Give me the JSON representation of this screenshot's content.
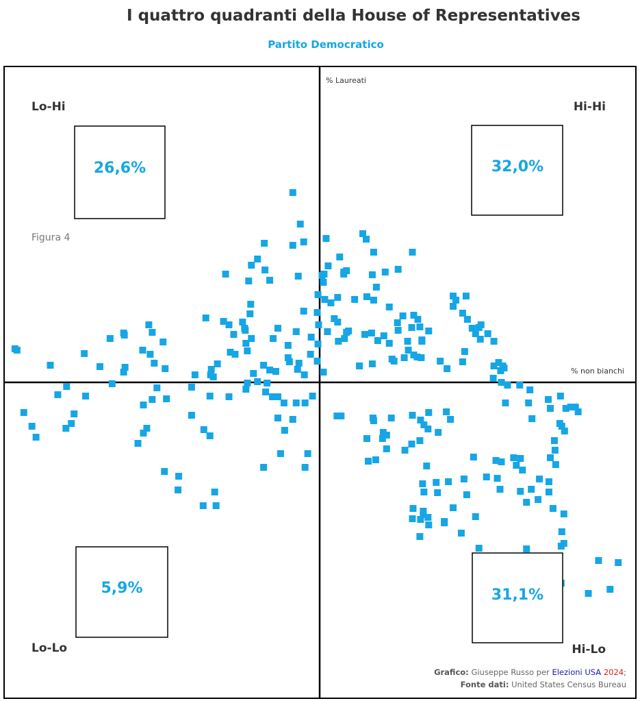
{
  "title": "I quattro quadranti della House of Representatives",
  "subtitle": "Partito Democratico",
  "figure_label": "Figura 4",
  "credits": {
    "line1_prefix": "Grafico:",
    "line1_author": "Giuseppe Russo per",
    "line1_site_a": "Elezioni USA",
    "line1_site_b": "2024",
    "line1_suffix": ";",
    "line2_prefix": "Fonte dati:",
    "line2_source": "United States Census Bureau"
  },
  "colors": {
    "points": "#16a6e6",
    "axes": "#000000",
    "percentages": "#16a6e6"
  },
  "chart_data": {
    "type": "scatter",
    "xlabel": "% non bianchi",
    "ylabel": "% Laureati",
    "xlim": [
      -463,
      467
    ],
    "ylim": [
      -461,
      461
    ],
    "quadrants": [
      {
        "name": "Lo-Hi",
        "position": "top-left",
        "percentage": "26,6%"
      },
      {
        "name": "Hi-Hi",
        "position": "top-right",
        "percentage": "32,0%"
      },
      {
        "name": "Lo-Lo",
        "position": "bottom-left",
        "percentage": "5,9%"
      },
      {
        "name": "Hi-Lo",
        "position": "bottom-right",
        "percentage": "31,1%"
      }
    ],
    "points": [
      [
        -38,
        277
      ],
      [
        -27,
        231
      ],
      [
        -22,
        205
      ],
      [
        11,
        210
      ],
      [
        31,
        183
      ],
      [
        65,
        217
      ],
      [
        70,
        209
      ],
      [
        81,
        190
      ],
      [
        98,
        161
      ],
      [
        71,
        125
      ],
      [
        117,
        165
      ],
      [
        138,
        190
      ],
      [
        -80,
        203
      ],
      [
        -90,
        180
      ],
      [
        -99,
        171
      ],
      [
        -79,
        164
      ],
      [
        -72,
        149
      ],
      [
        -137,
        158
      ],
      [
        -103,
        148
      ],
      [
        -30,
        155
      ],
      [
        -22,
        104
      ],
      [
        -1,
        128
      ],
      [
        -2,
        102
      ],
      [
        8,
        158
      ],
      [
        5,
        156
      ],
      [
        37,
        158
      ],
      [
        18,
        116
      ],
      [
        23,
        93
      ],
      [
        28,
        88
      ],
      [
        41,
        73
      ],
      [
        29,
        60
      ],
      [
        38,
        64
      ],
      [
        -38,
        200
      ],
      [
        -166,
        94
      ],
      [
        -140,
        89
      ],
      [
        -132,
        84
      ],
      [
        -100,
        114
      ],
      [
        -60,
        79
      ],
      [
        -67,
        64
      ],
      [
        -45,
        54
      ],
      [
        -45,
        36
      ],
      [
        -11,
        66
      ],
      [
        -12,
        41
      ],
      [
        -21,
        11
      ],
      [
        -31,
        19
      ],
      [
        -29,
        28
      ],
      [
        -43,
        30
      ],
      [
        -33,
        74
      ],
      [
        -72,
        18
      ],
      [
        -81,
        25
      ],
      [
        -63,
        16
      ],
      [
        -1,
        56
      ],
      [
        0,
        84
      ],
      [
        -2,
        31
      ],
      [
        -20,
        -30
      ],
      [
        7,
        15
      ],
      [
        -108,
        76
      ],
      [
        -99,
        64
      ],
      [
        -109,
        79
      ],
      [
        -112,
        88
      ],
      [
        -107,
        57
      ],
      [
        -105,
        46
      ],
      [
        -101,
        100
      ],
      [
        -125,
        70
      ],
      [
        -130,
        44
      ],
      [
        -123,
        41
      ],
      [
        -149,
        27
      ],
      [
        -158,
        19
      ],
      [
        -155,
        8
      ],
      [
        -132,
        -21
      ],
      [
        -105,
        -1
      ],
      [
        -96,
        13
      ],
      [
        -107,
        -10
      ],
      [
        -90,
        1
      ],
      [
        -76,
        -1
      ],
      [
        -78,
        -14
      ],
      [
        -68,
        -21
      ],
      [
        -60,
        -21
      ],
      [
        -51,
        -30
      ],
      [
        -229,
        59
      ],
      [
        -159,
        11
      ],
      [
        -160,
        -20
      ],
      [
        -187,
        -48
      ],
      [
        -169,
        -69
      ],
      [
        -160,
        -78
      ],
      [
        -153,
        -160
      ],
      [
        -245,
        73
      ],
      [
        -250,
        84
      ],
      [
        -286,
        69
      ],
      [
        -287,
        72
      ],
      [
        -307,
        64
      ],
      [
        -345,
        42
      ],
      [
        -226,
        20
      ],
      [
        -242,
        28
      ],
      [
        -248,
        41
      ],
      [
        -259,
        47
      ],
      [
        -285,
        22
      ],
      [
        -287,
        15
      ],
      [
        -238,
        -8
      ],
      [
        -258,
        -74
      ],
      [
        -253,
        -67
      ],
      [
        -266,
        -89
      ],
      [
        -227,
        -130
      ],
      [
        -206,
        -137
      ],
      [
        -207,
        -157
      ],
      [
        -360,
        -46
      ],
      [
        -384,
        -18
      ],
      [
        -371,
        -6
      ],
      [
        -395,
        25
      ],
      [
        -434,
        -44
      ],
      [
        -343,
        -20
      ],
      [
        -364,
        -60
      ],
      [
        -372,
        -67
      ],
      [
        -416,
        -80
      ],
      [
        -422,
        -64
      ],
      [
        -447,
        49
      ],
      [
        -444,
        47
      ],
      [
        -322,
        23
      ],
      [
        -304,
        -2
      ],
      [
        -258,
        -33
      ],
      [
        -245,
        -25
      ],
      [
        -224,
        -24
      ],
      [
        -182,
        11
      ],
      [
        -187,
        -7
      ],
      [
        -170,
        -180
      ],
      [
        -151,
        -180
      ],
      [
        -16,
        -104
      ],
      [
        -33,
        -30
      ],
      [
        -38,
        -54
      ],
      [
        -9,
        -20
      ],
      [
        -50,
        -70
      ],
      [
        -60,
        -52
      ],
      [
        -81,
        -124
      ],
      [
        -56,
        -104
      ],
      [
        -20,
        -124
      ],
      [
        13,
        74
      ],
      [
        9,
        121
      ],
      [
        7,
        146
      ],
      [
        14,
        170
      ],
      [
        37,
        161
      ],
      [
        28,
        124
      ],
      [
        41,
        163
      ],
      [
        79,
        157
      ],
      [
        85,
        139
      ],
      [
        81,
        120
      ],
      [
        53,
        121
      ],
      [
        44,
        75
      ],
      [
        68,
        70
      ],
      [
        79,
        27
      ],
      [
        60,
        24
      ],
      [
        87,
        61
      ],
      [
        96,
        68
      ],
      [
        104,
        57
      ],
      [
        131,
        60
      ],
      [
        137,
        80
      ],
      [
        117,
        76
      ],
      [
        116,
        87
      ],
      [
        124,
        97
      ],
      [
        140,
        98
      ],
      [
        146,
        92
      ],
      [
        149,
        81
      ],
      [
        162,
        75
      ],
      [
        152,
        62
      ],
      [
        198,
        111
      ],
      [
        202,
        120
      ],
      [
        212,
        101
      ],
      [
        219,
        92
      ],
      [
        226,
        79
      ],
      [
        239,
        84
      ],
      [
        231,
        71
      ],
      [
        238,
        63
      ],
      [
        249,
        71
      ],
      [
        258,
        60
      ],
      [
        271,
        24
      ],
      [
        273,
        21
      ],
      [
        258,
        24
      ],
      [
        296,
        -4
      ],
      [
        198,
        126
      ],
      [
        217,
        126
      ],
      [
        132,
        47
      ],
      [
        126,
        36
      ],
      [
        145,
        37
      ],
      [
        151,
        36
      ],
      [
        179,
        31
      ],
      [
        108,
        34
      ],
      [
        111,
        31
      ],
      [
        78,
        72
      ],
      [
        104,
        110
      ],
      [
        152,
        60
      ],
      [
        140,
        40
      ],
      [
        189,
        20
      ],
      [
        212,
        30
      ],
      [
        236,
        80
      ],
      [
        215,
        45
      ],
      [
        265,
        29
      ],
      [
        268,
        17
      ],
      [
        257,
        6
      ],
      [
        269,
        0
      ],
      [
        278,
        -4
      ],
      [
        311,
        -11
      ],
      [
        309,
        -30
      ],
      [
        314,
        -53
      ],
      [
        341,
        -38
      ],
      [
        338,
        -25
      ],
      [
        356,
        -20
      ],
      [
        364,
        -38
      ],
      [
        371,
        -36
      ],
      [
        378,
        -36
      ],
      [
        382,
        -43
      ],
      [
        355,
        -60
      ],
      [
        358,
        -64
      ],
      [
        362,
        -71
      ],
      [
        347,
        -85
      ],
      [
        348,
        -99
      ],
      [
        341,
        -110
      ],
      [
        349,
        -120
      ],
      [
        267,
        -156
      ],
      [
        297,
        -159
      ],
      [
        323,
        -171
      ],
      [
        275,
        -30
      ],
      [
        228,
        -109
      ],
      [
        214,
        -141
      ],
      [
        231,
        -196
      ],
      [
        198,
        -183
      ],
      [
        161,
        -197
      ],
      [
        149,
        -225
      ],
      [
        210,
        -220
      ],
      [
        236,
        -242
      ],
      [
        247,
        -138
      ],
      [
        261,
        -114
      ],
      [
        263,
        -140
      ],
      [
        269,
        -116
      ],
      [
        287,
        -110
      ],
      [
        297,
        -111
      ],
      [
        291,
        -121
      ],
      [
        300,
        -128
      ],
      [
        325,
        -141
      ],
      [
        339,
        -145
      ],
      [
        339,
        -160
      ],
      [
        345,
        -184
      ],
      [
        361,
        -192
      ],
      [
        313,
        -156
      ],
      [
        306,
        -175
      ],
      [
        358,
        -218
      ],
      [
        361,
        -235
      ],
      [
        357,
        -239
      ],
      [
        306,
        -243
      ],
      [
        295,
        -278
      ],
      [
        357,
        -293
      ],
      [
        397,
        -308
      ],
      [
        412,
        -260
      ],
      [
        441,
        -263
      ],
      [
        429,
        -302
      ],
      [
        138,
        -199
      ],
      [
        150,
        -200
      ],
      [
        162,
        -208
      ],
      [
        175,
        -161
      ],
      [
        173,
        -146
      ],
      [
        191,
        -145
      ],
      [
        218,
        -164
      ],
      [
        185,
        -205
      ],
      [
        155,
        -160
      ],
      [
        153,
        -148
      ],
      [
        94,
        -82
      ],
      [
        107,
        -52
      ],
      [
        138,
        -48
      ],
      [
        150,
        -55
      ],
      [
        155,
        -62
      ],
      [
        162,
        -44
      ],
      [
        188,
        -43
      ],
      [
        194,
        -54
      ],
      [
        176,
        -73
      ],
      [
        161,
        -68
      ],
      [
        149,
        -85
      ],
      [
        137,
        -90
      ],
      [
        127,
        -99
      ],
      [
        95,
        -73
      ],
      [
        73,
        -115
      ],
      [
        84,
        -113
      ],
      [
        100,
        -97
      ],
      [
        139,
        -184
      ],
      [
        154,
        -188
      ],
      [
        154,
        -193
      ],
      [
        185,
        -203
      ],
      [
        159,
        -122
      ],
      [
        71,
        -82
      ],
      [
        100,
        -77
      ],
      [
        81,
        -56
      ],
      [
        80,
        -52
      ],
      [
        33,
        -49
      ],
      [
        27,
        -49
      ]
    ]
  }
}
